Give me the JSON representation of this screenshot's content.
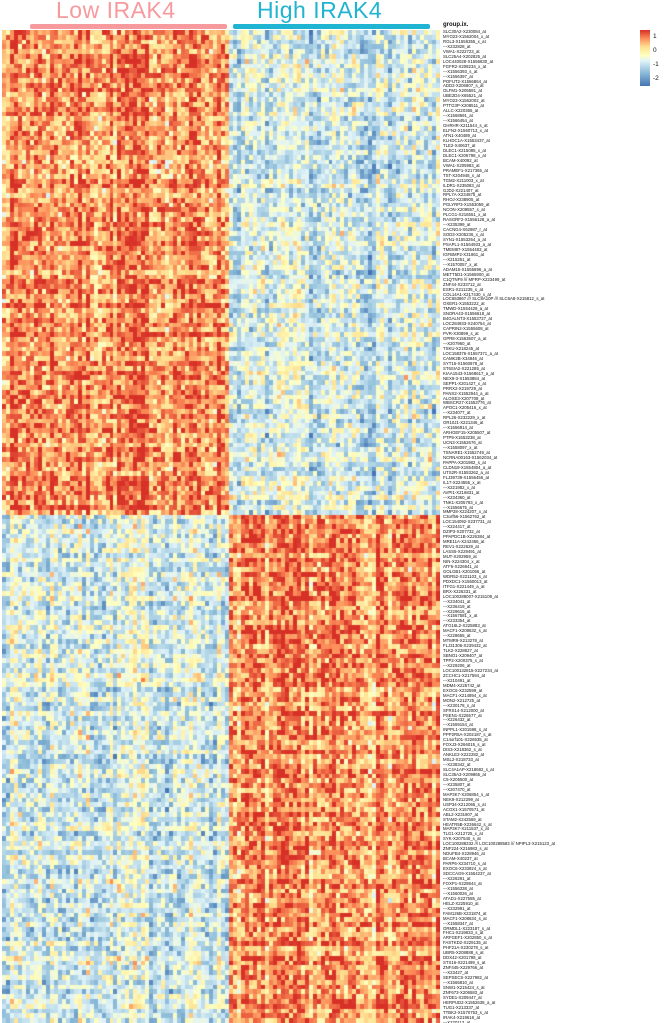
{
  "header": {
    "low_label": "Low IRAK4",
    "high_label": "High IRAK4",
    "low_color": "#f79a9e",
    "high_color": "#1fb4d2"
  },
  "row_header": "group.ix.",
  "legend": {
    "ticks": [
      "1",
      "0",
      "-1",
      "-2"
    ]
  },
  "chart_data": {
    "type": "heatmap",
    "title": "",
    "column_groups": [
      {
        "name": "Low IRAK4",
        "n": 57
      },
      {
        "name": "High IRAK4",
        "n": 53
      }
    ],
    "value_range": [
      -2.5,
      1.5
    ],
    "colormap": [
      {
        "t": 0.0,
        "color": "#4575b4"
      },
      {
        "t": 0.25,
        "color": "#91bfdb"
      },
      {
        "t": 0.45,
        "color": "#e0f3f8"
      },
      {
        "t": 0.55,
        "color": "#ffffbf"
      },
      {
        "t": 0.7,
        "color": "#fee090"
      },
      {
        "t": 0.85,
        "color": "#fc8d59"
      },
      {
        "t": 1.0,
        "color": "#d73027"
      }
    ],
    "pattern": {
      "description": "Rows above split are high (red) in Low-IRAK4 columns and low (blue) in High-IRAK4 columns; rows below split are the reverse.",
      "split_row": 101,
      "blocks": {
        "top_low_mean": 0.85,
        "top_high_mean": -0.9,
        "bottom_low_mean": -0.75,
        "bottom_high_mean": 0.75
      },
      "col_offset_amp": 0.45,
      "row_offset_amp": 0.3,
      "noise_amp": 1.15,
      "seed": 7
    },
    "row_labels": [
      "SLC30A2-X230084_at",
      "MYO23-X1562004_x_at",
      "RGL3-X1556355_x_at",
      "---X232828_at",
      "VWA1-X222723_at",
      "SLC25A4-X202825_at",
      "LOC440028-X1556830_at",
      "FGFR2-X208234_x_at",
      "---X1556393_s_at",
      "---X1556397_at",
      "POFUT2-X1556864_at",
      "ADD2-X206807_s_at",
      "OLFM1-X205591_at",
      "UBE2D4-X65521_at",
      "MYO23-X1562002_at",
      "PTTG3P-X208511_at",
      "ALLC-X220365_at",
      "---X1568691_at",
      "---X1566454_at",
      "GHRHR-X211544_s_at",
      "ELFN2-X1560713_x_at",
      "ATN1-X40489_at",
      "KLHDC1A-X1553437_at",
      "TLE2-X40637_at",
      "DLEC1-X215085_x_at",
      "DLEC1-X206798_x_at",
      "BCAM-X40092_at",
      "VWA1-X205983_at",
      "PRAMEF1-X217365_at",
      "TST-X204948_s_at",
      "TGM2-X211003_x_at",
      "ILDR1-X235083_at",
      "GJD2-X221407_at",
      "RPL7A-X234875_at",
      "RHOJ-X238905_at",
      "PGLYRP3-X1553059_at",
      "NCON-X209557_s_at",
      "PLCG1-X216551_x_at",
      "RASGRF2-X1556128_a_at",
      "---X235399_at",
      "CACNG4-X62987_r_at",
      "SOD3-X205236_x_at",
      "SYN1-X1553264_a_at",
      "PSAPL1-X1564933_a_at",
      "TMEM87-X1554483_at",
      "IGFBMP2-X31861_at",
      "---X215251_at",
      "---X1570057_x_at",
      "ADAM15-X1555896_a_at",
      "METT5D1-X1565900_at",
      "C1QTNF9 /// MFRP-X223499_at",
      "ZNF44-X233712_at",
      "ESR1-X211235_s_at",
      "COL14A1-X217430_x_at",
      "LOC653867 /// SLC8A10P /// SLC6A8-X215812_s_at",
      "OXER1-X1553222_at",
      "TMWD-X1554429_a_at",
      "SNORA43-X1556618_at",
      "B4GALNT3-X1553727_at",
      "LOC284933-X240754_at",
      "CAPRIN2-X1555608_at",
      "PVR-X30899_s_at",
      "GPR8-X1563507_a_at",
      "---X207960_at",
      "TSKU-X218245_at",
      "LOC158376-X1557371_a_at",
      "CAMK2B-X34846_at",
      "SYT15-X1560878_at",
      "ST6SIA2-X221285_at",
      "KIAA1543-X1568617_a_at",
      "NEX9-3-X1553884_at",
      "SEPP1-X201427_x_at",
      "PRRX2-X219729_at",
      "PANX2-X1552944_a_at",
      "ALOXE3-X207708_at",
      "WBSCR27-X1553776_at",
      "APOC1-X205416_x_at",
      "---X234077_at",
      "RPL26-X232229_x_at",
      "OR10J1-X221346_at",
      "---X1556914_at",
      "ARHGEF15-X205507_at",
      "PTP9-X1553238_at",
      "UCN3-X1552676_at",
      "---X1558097_x_at",
      "TSNARE1-X1552749_at",
      "NCRNA00163-X1562034_at",
      "PAPPA-X201982_s_at",
      "CLDN19-X1554804_a_at",
      "UTS2R-X1553262_a_at",
      "FLJ39739-X1556456_at",
      "IL17-X224555_x_at",
      "---X221982_x_at",
      "AVPI1-X216831_at",
      "---X234360_at",
      "TNK1-X205793_x_at",
      "---X1556675_at",
      "MMP28-X224207_x_at",
      "C3orf56-X1562762_at",
      "LOC154092-X237731_at",
      "---X224417_at",
      "DZIP3-X207732_at",
      "PPAPDC1B-X226384_at",
      "MRE11A-X242456_at",
      "REV1-X222629_at",
      "LASS5-X229491_at",
      "MUT-X202959_at",
      "NIN-X224304_x_at",
      "ATF6-X226941_at",
      "GOLGB1-X201056_at",
      "WDR52-X221103_s_at",
      "PDXDC1-X1560013_at",
      "ITFG1-X221449_a_at",
      "BRX-X226331_at",
      "LOC100288007-X215109_at",
      "---X234041_at",
      "---X236419_at",
      "---X229615_at",
      "---X1567581_x_at",
      "---X233354_at",
      "ATG16L2-X225883_at",
      "MACF1-X208632_s_at",
      "---X228655_at",
      "MTMR9-X213278_at",
      "FLJ31306-X239432_at",
      "TLK2-X228627_at",
      "SBNO1-X209407_at",
      "TPP2-X200375_s_at",
      "---X229206_at",
      "LOC100132815-X227234_at",
      "ZCCHC1-X217594_at",
      "---X210491_at",
      "MDM4-X225742_at",
      "EXOC6-X232599_at",
      "MACF1-X214894_x_at",
      "MON2-X212725_at",
      "---X230178_s_at",
      "SFRS14-X212000_at",
      "PSEN1-X226577_at",
      "---X226432_at",
      "---X1559154_at",
      "INPPL1-X201598_s_at",
      "PPP2R5A-X202187_s_at",
      "C14orf101-X226535_at",
      "FOXJ3-X266015_s_at",
      "DIS3-X218362_s_at",
      "ANKLE2-X222282_at",
      "MSL2-X218733_at",
      "---X238342_at",
      "SLC4A1AP-X218682_s_at",
      "SLC35A3-X209865_at",
      "C5-X205500_at",
      "---X235807_at",
      "---X207470_at",
      "MAP3K7-X206854_s_at",
      "NEK9-X212299_at",
      "USP34-X212065_s_at",
      "ACOX1-X1570571_at",
      "ABL2-X231907_at",
      "STAM2-X242569_at",
      "HEATR5B-X236642_s_at",
      "MAP3K7-X211537_x_at",
      "TLG1-X212725_x_at",
      "SYK-X207540_s_at",
      "LOC100288332 /// LOC100288583 /// NPIPL3-X215123_at",
      "ZNF224-X216983_s_at",
      "NDUFB4-X228946_at",
      "BCAM-X40237_at",
      "PARP6-X234710_s_at",
      "EXOC6-X233924_s_at",
      "SDCCAG9-X1554237_at",
      "---X226291_at",
      "FOXP1-X229844_at",
      "---X1556338_at",
      "---X1560026_at",
      "ATAD1-X227585_at",
      "HELZ-X225910_at",
      "---X232991_at",
      "FAM126B-X231874_at",
      "MACF1-X208634_s_at",
      "---X1558347_at",
      "ORMDL1-X223187_s_at",
      "FHC1-X219833_s_at",
      "ARFGEF1-X202850_s_at",
      "FASTKD2-X229135_at",
      "PHF21A-X230278_s_at",
      "UBR5-X208888_s_at",
      "DDX42-X201788_at",
      "STX16-X221499_s_at",
      "ZNF445-X229766_at",
      "---X23427_at",
      "SEPSECS-X227982_at",
      "---X1565810_at",
      "SNW1-X215424_s_at",
      "ZNF673-X206583_at",
      "SYDE1-X209447_at",
      "HERPUD2-X1552638_a_at",
      "TUG1-X213337_at",
      "TTBK2-X1570753_s_at",
      "IRAK4-X219618_at",
      "---X220113_at",
      "---X1569684_at",
      "---X242918_at",
      "---X230905_at",
      "---X239227_at",
      "---X237105_at",
      "---X226804_at"
    ]
  }
}
